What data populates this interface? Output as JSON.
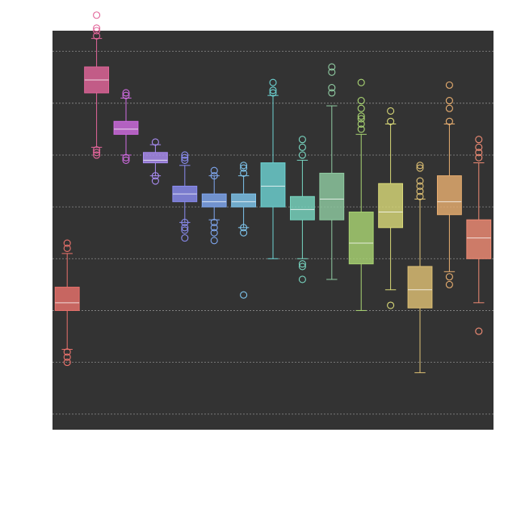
{
  "chart_data": {
    "type": "box",
    "background_color": "#333333",
    "page_color": "#ffffff",
    "grid": true,
    "grid_color": "#8a8a8a",
    "y_axis_labels_visible": false,
    "x_axis_labels_visible": false,
    "ylim": [
      -1.3,
      6.4
    ],
    "gridlines": [
      -1,
      0,
      1,
      2,
      3,
      4,
      5,
      6
    ],
    "series": [
      {
        "color": "#e8716b",
        "q1": 1.0,
        "median": 1.15,
        "q3": 1.45,
        "whisker_low": 0.25,
        "whisker_high": 2.1,
        "outliers": [
          0.0,
          0.1,
          0.2,
          2.2,
          2.3
        ]
      },
      {
        "color": "#e2659a",
        "q1": 5.2,
        "median": 5.45,
        "q3": 5.7,
        "whisker_low": 4.15,
        "whisker_high": 6.25,
        "outliers": [
          4.0,
          4.05,
          4.1,
          6.3,
          6.4,
          6.45,
          6.7
        ]
      },
      {
        "color": "#cf6be0",
        "q1": 4.4,
        "median": 4.5,
        "q3": 4.65,
        "whisker_low": 4.0,
        "whisker_high": 5.1,
        "outliers": [
          3.9,
          3.95,
          5.15,
          5.2
        ]
      },
      {
        "color": "#a98cf2",
        "q1": 3.85,
        "median": 3.9,
        "q3": 4.05,
        "whisker_low": 3.6,
        "whisker_high": 4.2,
        "outliers": [
          3.5,
          3.6,
          4.25
        ]
      },
      {
        "color": "#8a8cf0",
        "q1": 3.1,
        "median": 3.25,
        "q3": 3.4,
        "whisker_low": 2.7,
        "whisker_high": 3.8,
        "outliers": [
          2.4,
          2.55,
          2.6,
          2.7,
          3.9,
          3.95,
          4.0
        ]
      },
      {
        "color": "#7fa7f0",
        "q1": 3.0,
        "median": 3.1,
        "q3": 3.25,
        "whisker_low": 2.75,
        "whisker_high": 3.6,
        "outliers": [
          2.35,
          2.5,
          2.6,
          2.7,
          3.6,
          3.7
        ]
      },
      {
        "color": "#7ec4ec",
        "q1": 3.0,
        "median": 3.1,
        "q3": 3.25,
        "whisker_low": 2.6,
        "whisker_high": 3.6,
        "outliers": [
          1.3,
          2.5,
          2.6,
          3.65,
          3.75,
          3.8
        ]
      },
      {
        "color": "#6cd2d2",
        "q1": 3.0,
        "median": 3.4,
        "q3": 3.85,
        "whisker_low": 2.0,
        "whisker_high": 5.15,
        "outliers": [
          5.2,
          5.25,
          5.4
        ]
      },
      {
        "color": "#78d5c0",
        "q1": 2.75,
        "median": 2.95,
        "q3": 3.2,
        "whisker_low": 2.0,
        "whisker_high": 3.9,
        "outliers": [
          1.6,
          1.85,
          1.9,
          4.0,
          4.15,
          4.3
        ]
      },
      {
        "color": "#8fcaa1",
        "q1": 2.75,
        "median": 3.15,
        "q3": 3.65,
        "whisker_low": 1.6,
        "whisker_high": 4.95,
        "outliers": [
          5.2,
          5.3,
          5.6,
          5.7
        ]
      },
      {
        "color": "#a9d473",
        "q1": 1.9,
        "median": 2.3,
        "q3": 2.9,
        "whisker_low": 1.0,
        "whisker_high": 4.4,
        "outliers": [
          4.5,
          4.6,
          4.7,
          4.75,
          4.9,
          5.05,
          5.4
        ]
      },
      {
        "color": "#d8d878",
        "q1": 2.6,
        "median": 2.9,
        "q3": 3.45,
        "whisker_low": 1.4,
        "whisker_high": 4.6,
        "outliers": [
          1.1,
          4.65,
          4.85
        ]
      },
      {
        "color": "#dec074",
        "q1": 1.05,
        "median": 1.4,
        "q3": 1.85,
        "whisker_low": -0.2,
        "whisker_high": 3.15,
        "outliers": [
          3.2,
          3.3,
          3.4,
          3.5,
          3.75,
          3.8
        ]
      },
      {
        "color": "#e8ae70",
        "q1": 2.85,
        "median": 3.1,
        "q3": 3.6,
        "whisker_low": 1.75,
        "whisker_high": 4.6,
        "outliers": [
          1.5,
          1.65,
          4.65,
          4.9,
          5.05,
          5.35
        ]
      },
      {
        "color": "#ef8b74",
        "q1": 2.0,
        "median": 2.4,
        "q3": 2.75,
        "whisker_low": 1.15,
        "whisker_high": 3.85,
        "outliers": [
          0.6,
          3.95,
          4.05,
          4.15,
          4.3
        ]
      }
    ]
  }
}
